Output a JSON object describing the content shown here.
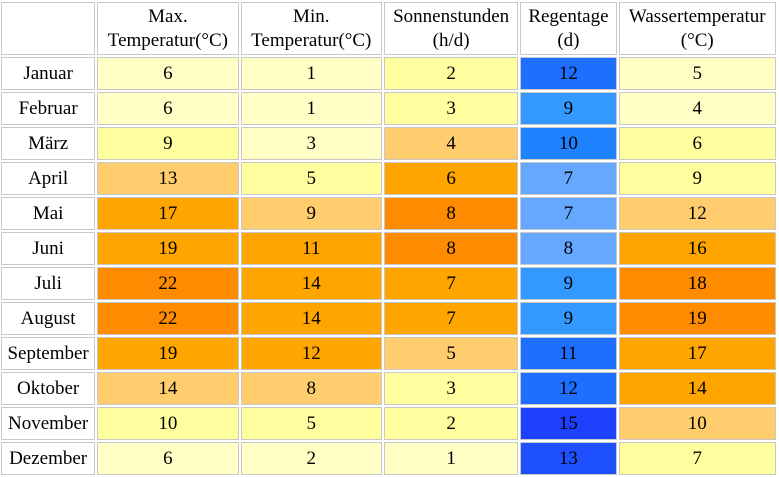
{
  "headers": [
    {
      "line1": "Max.",
      "line2": "Temperatur(°C)"
    },
    {
      "line1": "Min.",
      "line2": "Temperatur(°C)"
    },
    {
      "line1": "Sonnenstunden",
      "line2": "(h/d)"
    },
    {
      "line1": "Regentage",
      "line2": "(d)"
    },
    {
      "line1": "Wassertemperatur",
      "line2": "(°C)"
    }
  ],
  "rows": [
    {
      "month": "Januar",
      "max": "6",
      "min": "1",
      "sun": "2",
      "rain": "12",
      "water": "5"
    },
    {
      "month": "Februar",
      "max": "6",
      "min": "1",
      "sun": "3",
      "rain": "9",
      "water": "4"
    },
    {
      "month": "März",
      "max": "9",
      "min": "3",
      "sun": "4",
      "rain": "10",
      "water": "6"
    },
    {
      "month": "April",
      "max": "13",
      "min": "5",
      "sun": "6",
      "rain": "7",
      "water": "9"
    },
    {
      "month": "Mai",
      "max": "17",
      "min": "9",
      "sun": "8",
      "rain": "7",
      "water": "12"
    },
    {
      "month": "Juni",
      "max": "19",
      "min": "11",
      "sun": "8",
      "rain": "8",
      "water": "16"
    },
    {
      "month": "Juli",
      "max": "22",
      "min": "14",
      "sun": "7",
      "rain": "9",
      "water": "18"
    },
    {
      "month": "August",
      "max": "22",
      "min": "14",
      "sun": "7",
      "rain": "9",
      "water": "19"
    },
    {
      "month": "September",
      "max": "19",
      "min": "12",
      "sun": "5",
      "rain": "11",
      "water": "17"
    },
    {
      "month": "Oktober",
      "max": "14",
      "min": "8",
      "sun": "3",
      "rain": "12",
      "water": "14"
    },
    {
      "month": "November",
      "max": "10",
      "min": "5",
      "sun": "2",
      "rain": "15",
      "water": "10"
    },
    {
      "month": "Dezember",
      "max": "6",
      "min": "2",
      "sun": "1",
      "rain": "13",
      "water": "7"
    }
  ],
  "colors": {
    "warm_scale": [
      "#ffffc6",
      "#ffffa0",
      "#ffcc6e",
      "#ffa500",
      "#ff8c00"
    ],
    "rain_scale": [
      "#66a8ff",
      "#3399ff",
      "#1e82ff",
      "#1e6eff",
      "#1e50ff",
      "#1e40ff"
    ]
  }
}
